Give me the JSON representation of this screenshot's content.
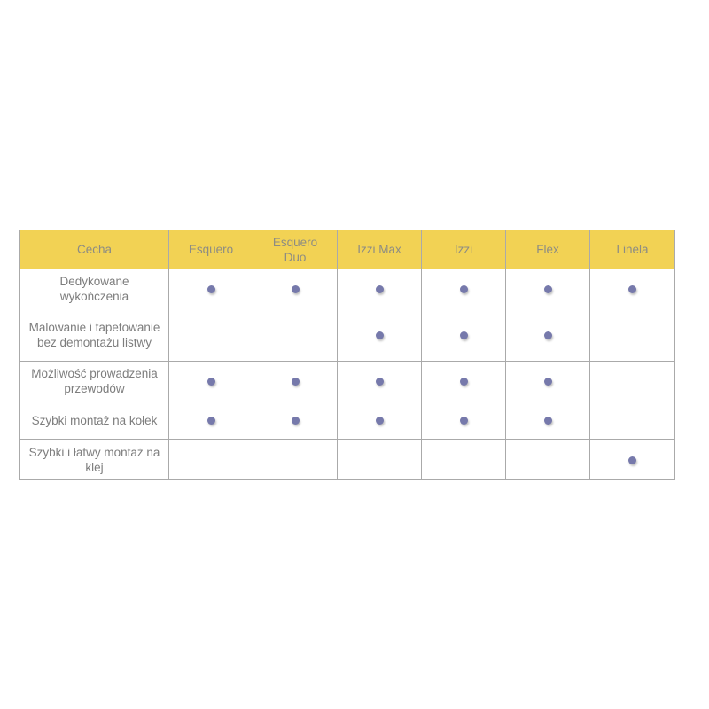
{
  "table": {
    "name": "feature-comparison-table",
    "columns": [
      "Cecha",
      "Esquero",
      "Esquero Duo",
      "Izzi Max",
      "Izzi",
      "Flex",
      "Linela"
    ],
    "rows": [
      {
        "feature": "Dedykowane wykończenia",
        "values": [
          true,
          true,
          true,
          true,
          true,
          true
        ]
      },
      {
        "feature": "Malowanie i tapetowanie bez demontażu listwy",
        "values": [
          false,
          false,
          true,
          true,
          true,
          false
        ]
      },
      {
        "feature": "Możliwość prowadzenia przewodów",
        "values": [
          true,
          true,
          true,
          true,
          true,
          false
        ]
      },
      {
        "feature": "Szybki montaż na kołek",
        "values": [
          true,
          true,
          true,
          true,
          true,
          false
        ]
      },
      {
        "feature": "Szybki i łatwy montaż na klej",
        "values": [
          false,
          false,
          false,
          false,
          false,
          true
        ]
      }
    ],
    "check_marker": "dot",
    "colors": {
      "header_bg": "#f2d254",
      "header_text": "#8d8c83",
      "body_text": "#7d7d7d",
      "dot": "#7679ab",
      "border": "#aaaaaa",
      "border_outer": "#8f8f8f"
    }
  }
}
